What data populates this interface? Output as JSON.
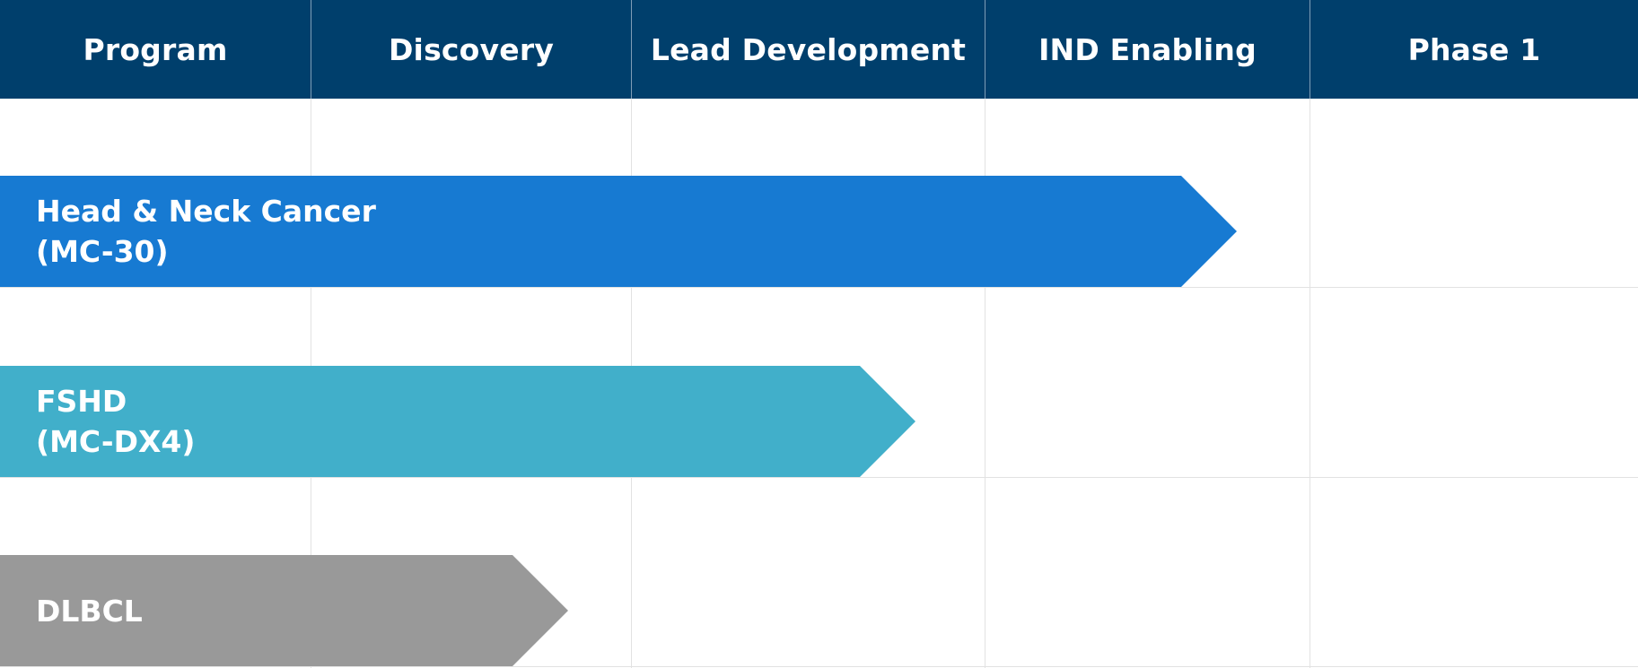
{
  "header": {
    "columns": [
      "Program",
      "Discovery",
      "Lead Development",
      "IND Enabling",
      "Phase 1"
    ]
  },
  "programs": [
    {
      "name": "Head & Neck Cancer",
      "code": "(MC-30)",
      "color": "#177ad2"
    },
    {
      "name": "FSHD",
      "code": "(MC-DX4)",
      "color": "#41afca"
    },
    {
      "name": "DLBCL",
      "code": "",
      "color": "#999999"
    }
  ],
  "colors": {
    "header_background": "#003f6c",
    "header_text": "#ffffff",
    "grid_line": "#e2e2e2",
    "background": "#ffffff"
  }
}
